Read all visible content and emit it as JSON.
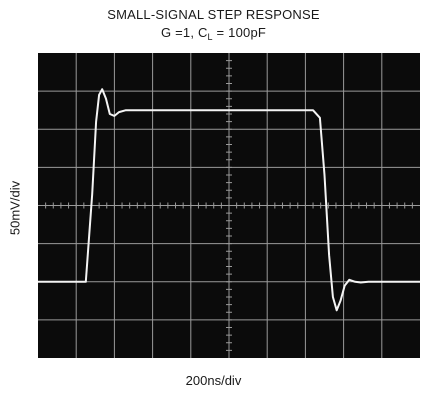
{
  "chart_data": {
    "type": "line",
    "title": "SMALL-SIGNAL STEP RESPONSE",
    "subtitle_prefix": "G =1, C",
    "subtitle_sub": "L",
    "subtitle_suffix": " = 100pF",
    "xlabel": "200ns/div",
    "ylabel": "50mV/div",
    "grid": true,
    "divisions": {
      "x": 10,
      "y": 8
    },
    "xlim": [
      0,
      10
    ],
    "ylim": [
      -4,
      4
    ],
    "series": [
      {
        "x": [
          0,
          1.25,
          1.42,
          1.52,
          1.6,
          1.68,
          1.78,
          1.88,
          2.0,
          2.12,
          2.3,
          2.55,
          3.0,
          5.0,
          7.2,
          7.38,
          7.5,
          7.62,
          7.72,
          7.82,
          7.92,
          8.03,
          8.15,
          8.3,
          8.45,
          8.65,
          8.9,
          9.2,
          10
        ],
        "y": [
          -2.0,
          -2.0,
          0.3,
          2.2,
          2.9,
          3.05,
          2.8,
          2.4,
          2.35,
          2.45,
          2.5,
          2.5,
          2.5,
          2.5,
          2.5,
          2.3,
          0.8,
          -1.3,
          -2.4,
          -2.75,
          -2.5,
          -2.1,
          -1.95,
          -2.0,
          -2.02,
          -2.0,
          -2.0,
          -2.0,
          -2.0
        ]
      }
    ],
    "colors": {
      "screen": "#0b0b0b",
      "grid": "#9a9a9a",
      "trace": "#f4f4f4"
    }
  }
}
